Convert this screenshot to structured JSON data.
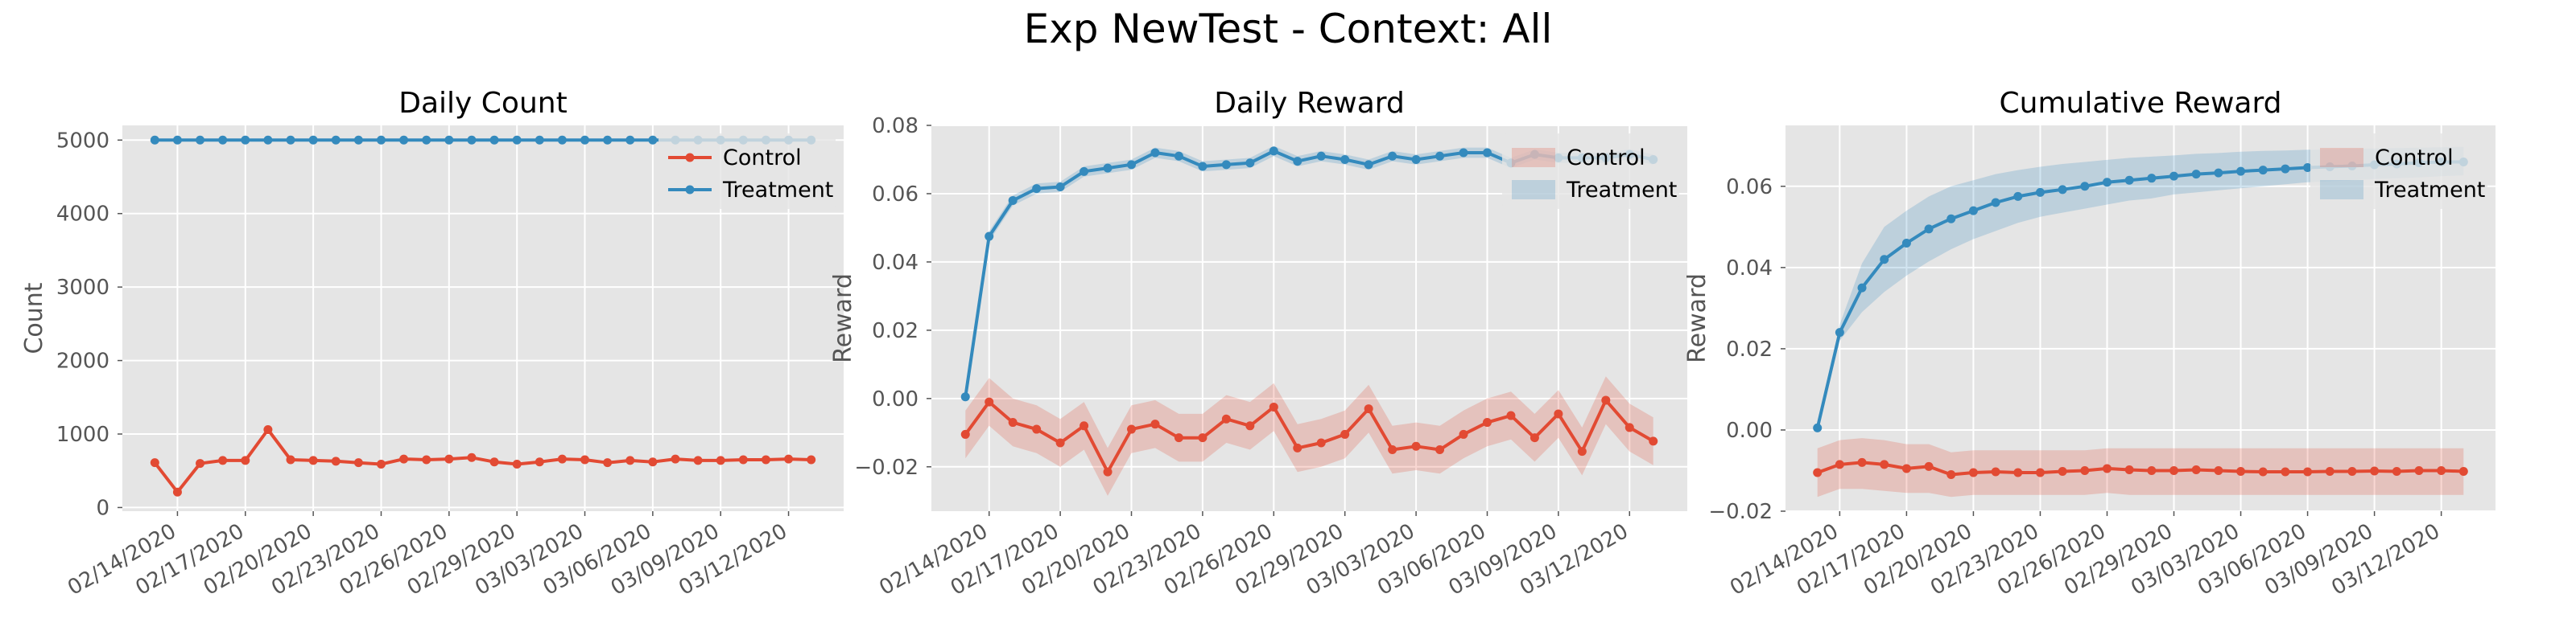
{
  "suptitle": "Exp NewTest - Context: All",
  "colors": {
    "control": "#E24A33",
    "treatment": "#348ABD",
    "axes_bg": "#E5E5E5",
    "grid": "#FFFFFF",
    "tick": "#555555"
  },
  "chart_data": [
    {
      "type": "line",
      "title": "Daily Count",
      "xlabel": "",
      "ylabel": "Count",
      "x": [
        "02/13/2020",
        "02/14/2020",
        "02/15/2020",
        "02/16/2020",
        "02/17/2020",
        "02/18/2020",
        "02/19/2020",
        "02/20/2020",
        "02/21/2020",
        "02/22/2020",
        "02/23/2020",
        "02/24/2020",
        "02/25/2020",
        "02/26/2020",
        "02/27/2020",
        "02/28/2020",
        "02/29/2020",
        "03/01/2020",
        "03/02/2020",
        "03/03/2020",
        "03/04/2020",
        "03/05/2020",
        "03/06/2020",
        "03/07/2020",
        "03/08/2020",
        "03/09/2020",
        "03/10/2020",
        "03/11/2020",
        "03/12/2020",
        "03/13/2020"
      ],
      "xticks": [
        "02/14/2020",
        "02/17/2020",
        "02/20/2020",
        "02/23/2020",
        "02/26/2020",
        "02/29/2020",
        "03/03/2020",
        "03/06/2020",
        "03/09/2020",
        "03/12/2020"
      ],
      "ylim": [
        -50,
        5200
      ],
      "yticks": [
        0,
        1000,
        2000,
        3000,
        4000,
        5000
      ],
      "ytick_labels": [
        "0",
        "1000",
        "2000",
        "3000",
        "4000",
        "5000"
      ],
      "grid": true,
      "legend": {
        "position": "upper-right",
        "style": "line"
      },
      "series": [
        {
          "name": "Control",
          "color": "#E24A33",
          "values": [
            610,
            210,
            600,
            640,
            640,
            1060,
            650,
            640,
            630,
            610,
            590,
            660,
            650,
            660,
            680,
            620,
            590,
            620,
            660,
            650,
            610,
            640,
            620,
            660,
            640,
            640,
            650,
            650,
            660,
            650
          ]
        },
        {
          "name": "Treatment",
          "color": "#348ABD",
          "values": [
            5000,
            5000,
            5000,
            5000,
            5000,
            5000,
            5000,
            5000,
            5000,
            5000,
            5000,
            5000,
            5000,
            5000,
            5000,
            5000,
            5000,
            5000,
            5000,
            5000,
            5000,
            5000,
            5000,
            5000,
            5000,
            5000,
            5000,
            5000,
            5000,
            5000
          ]
        }
      ]
    },
    {
      "type": "line",
      "title": "Daily Reward",
      "xlabel": "",
      "ylabel": "Reward",
      "x": [
        "02/13/2020",
        "02/14/2020",
        "02/15/2020",
        "02/16/2020",
        "02/17/2020",
        "02/18/2020",
        "02/19/2020",
        "02/20/2020",
        "02/21/2020",
        "02/22/2020",
        "02/23/2020",
        "02/24/2020",
        "02/25/2020",
        "02/26/2020",
        "02/27/2020",
        "02/28/2020",
        "02/29/2020",
        "03/01/2020",
        "03/02/2020",
        "03/03/2020",
        "03/04/2020",
        "03/05/2020",
        "03/06/2020",
        "03/07/2020",
        "03/08/2020",
        "03/09/2020",
        "03/10/2020",
        "03/11/2020",
        "03/12/2020",
        "03/13/2020"
      ],
      "xticks": [
        "02/14/2020",
        "02/17/2020",
        "02/20/2020",
        "02/23/2020",
        "02/26/2020",
        "02/29/2020",
        "03/03/2020",
        "03/06/2020",
        "03/09/2020",
        "03/12/2020"
      ],
      "ylim": [
        -0.033,
        0.08
      ],
      "yticks": [
        -0.02,
        0.0,
        0.02,
        0.04,
        0.06,
        0.08
      ],
      "ytick_labels": [
        "−0.02",
        "0.00",
        "0.02",
        "0.04",
        "0.06",
        "0.08"
      ],
      "grid": true,
      "legend": {
        "position": "upper-right",
        "style": "band"
      },
      "series": [
        {
          "name": "Control",
          "color": "#E24A33",
          "band": 0.007,
          "values": [
            -0.0105,
            -0.001,
            -0.007,
            -0.009,
            -0.013,
            -0.008,
            -0.0215,
            -0.009,
            -0.0075,
            -0.0115,
            -0.0115,
            -0.006,
            -0.008,
            -0.0025,
            -0.0145,
            -0.013,
            -0.0105,
            -0.003,
            -0.015,
            -0.014,
            -0.015,
            -0.0105,
            -0.007,
            -0.005,
            -0.0115,
            -0.0045,
            -0.0155,
            -0.0005,
            -0.0085,
            -0.0125
          ]
        },
        {
          "name": "Treatment",
          "color": "#348ABD",
          "band": 0.0015,
          "values": [
            0.0005,
            0.0475,
            0.058,
            0.0615,
            0.062,
            0.0665,
            0.0675,
            0.0685,
            0.072,
            0.071,
            0.068,
            0.0685,
            0.069,
            0.0725,
            0.0695,
            0.071,
            0.07,
            0.0685,
            0.071,
            0.07,
            0.071,
            0.072,
            0.072,
            0.069,
            0.0715,
            0.0705,
            0.0705,
            0.0705,
            0.0715,
            0.07
          ]
        }
      ]
    },
    {
      "type": "line",
      "title": "Cumulative Reward",
      "xlabel": "",
      "ylabel": "Reward",
      "x": [
        "02/13/2020",
        "02/14/2020",
        "02/15/2020",
        "02/16/2020",
        "02/17/2020",
        "02/18/2020",
        "02/19/2020",
        "02/20/2020",
        "02/21/2020",
        "02/22/2020",
        "02/23/2020",
        "02/24/2020",
        "02/25/2020",
        "02/26/2020",
        "02/27/2020",
        "02/28/2020",
        "02/29/2020",
        "03/01/2020",
        "03/02/2020",
        "03/03/2020",
        "03/04/2020",
        "03/05/2020",
        "03/06/2020",
        "03/07/2020",
        "03/08/2020",
        "03/09/2020",
        "03/10/2020",
        "03/11/2020",
        "03/12/2020",
        "03/13/2020"
      ],
      "xticks": [
        "02/14/2020",
        "02/17/2020",
        "02/20/2020",
        "02/23/2020",
        "02/26/2020",
        "02/29/2020",
        "03/03/2020",
        "03/06/2020",
        "03/09/2020",
        "03/12/2020"
      ],
      "ylim": [
        -0.02,
        0.075
      ],
      "yticks": [
        -0.02,
        0.0,
        0.02,
        0.04,
        0.06
      ],
      "ytick_labels": [
        "−0.02",
        "0.00",
        "0.02",
        "0.04",
        "0.06"
      ],
      "grid": true,
      "legend": {
        "position": "upper-right",
        "style": "band"
      },
      "series": [
        {
          "name": "Control",
          "color": "#E24A33",
          "values": [
            -0.0105,
            -0.0085,
            -0.008,
            -0.0085,
            -0.0095,
            -0.009,
            -0.011,
            -0.0105,
            -0.0103,
            -0.0105,
            -0.0105,
            -0.0102,
            -0.01,
            -0.0095,
            -0.0098,
            -0.01,
            -0.01,
            -0.0098,
            -0.01,
            -0.0102,
            -0.0103,
            -0.0103,
            -0.0103,
            -0.0102,
            -0.0102,
            -0.0101,
            -0.0102,
            -0.01,
            -0.01,
            -0.0102
          ],
          "band_lower": [
            -0.0165,
            -0.0145,
            -0.0145,
            -0.015,
            -0.0155,
            -0.0155,
            -0.0165,
            -0.016,
            -0.016,
            -0.016,
            -0.016,
            -0.016,
            -0.016,
            -0.0155,
            -0.016,
            -0.016,
            -0.016,
            -0.016,
            -0.016,
            -0.016,
            -0.016,
            -0.016,
            -0.016,
            -0.016,
            -0.016,
            -0.016,
            -0.016,
            -0.016,
            -0.016,
            -0.016
          ],
          "band_upper": [
            -0.0045,
            -0.0025,
            -0.002,
            -0.0025,
            -0.0035,
            -0.0035,
            -0.0055,
            -0.005,
            -0.005,
            -0.005,
            -0.005,
            -0.005,
            -0.005,
            -0.0045,
            -0.0045,
            -0.0045,
            -0.0045,
            -0.0045,
            -0.0045,
            -0.0045,
            -0.0045,
            -0.0045,
            -0.0045,
            -0.0045,
            -0.0045,
            -0.0045,
            -0.0045,
            -0.0045,
            -0.0045,
            -0.0045
          ]
        },
        {
          "name": "Treatment",
          "color": "#348ABD",
          "values": [
            0.0005,
            0.024,
            0.035,
            0.042,
            0.046,
            0.0495,
            0.052,
            0.054,
            0.056,
            0.0575,
            0.0585,
            0.0592,
            0.06,
            0.061,
            0.0615,
            0.062,
            0.0625,
            0.063,
            0.0633,
            0.0637,
            0.064,
            0.0643,
            0.0646,
            0.0648,
            0.065,
            0.0653,
            0.0655,
            0.0658,
            0.066,
            0.066
          ],
          "band_lower": [
            0.0,
            0.022,
            0.029,
            0.034,
            0.038,
            0.0415,
            0.0445,
            0.047,
            0.049,
            0.051,
            0.0525,
            0.0535,
            0.0545,
            0.0555,
            0.0565,
            0.057,
            0.058,
            0.0585,
            0.059,
            0.0595,
            0.06,
            0.0605,
            0.061,
            0.0612,
            0.0615,
            0.0618,
            0.062,
            0.0622,
            0.0625,
            0.0627
          ],
          "band_upper": [
            0.001,
            0.026,
            0.041,
            0.05,
            0.054,
            0.0575,
            0.06,
            0.0615,
            0.063,
            0.064,
            0.0648,
            0.0655,
            0.066,
            0.0665,
            0.067,
            0.0673,
            0.0676,
            0.068,
            0.0682,
            0.0685,
            0.0687,
            0.0688,
            0.069,
            0.0691,
            0.0692,
            0.0693,
            0.0694,
            0.0695,
            0.0696,
            0.0697
          ]
        }
      ]
    }
  ]
}
